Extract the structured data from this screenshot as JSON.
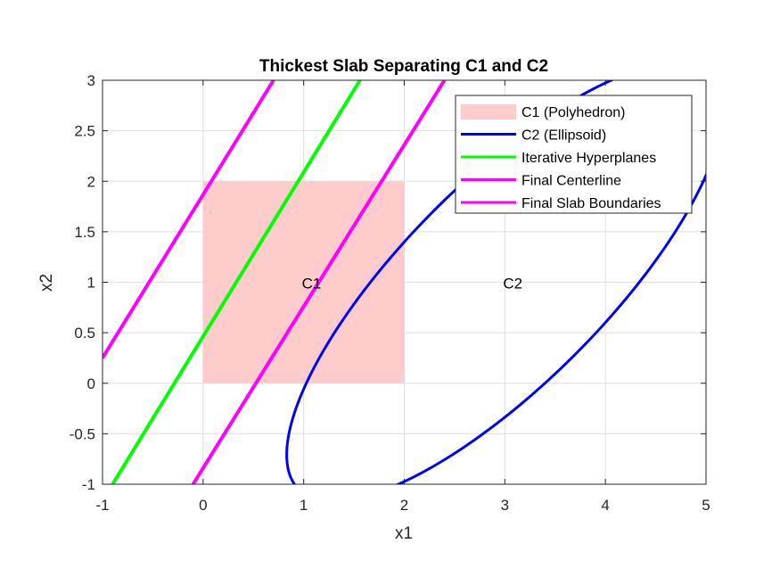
{
  "chart_data": {
    "type": "line",
    "title": "Thickest Slab Separating C1 and C2",
    "xlabel": "x1",
    "ylabel": "x2",
    "xlim": [
      -1,
      5
    ],
    "ylim": [
      -1,
      3
    ],
    "xticks": [
      "-1",
      "0",
      "1",
      "2",
      "3",
      "4",
      "5"
    ],
    "yticks": [
      "-1",
      "-0.5",
      "0",
      "0.5",
      "1",
      "1.5",
      "2",
      "2.5",
      "3"
    ],
    "grid": true,
    "legend_position": "top-right",
    "polyhedron": {
      "name": "C1 (Polyhedron)",
      "color": "#ffcccc",
      "x": [
        0,
        2,
        2,
        0
      ],
      "y": [
        0,
        0,
        2,
        2
      ]
    },
    "ellipsoid": {
      "name": "C2 (Ellipsoid)",
      "color": "#0000ff",
      "center": [
        3,
        1
      ],
      "axis_dir": [
        0.707,
        0.707
      ],
      "major_radius": 2.9,
      "minor_radius": 1.0
    },
    "series": [
      {
        "name": "Iterative Hyperplanes",
        "color": "#00ff00",
        "x": [
          -0.9,
          1.56
        ],
        "y": [
          -1,
          3
        ]
      },
      {
        "name": "Final Centerline",
        "color": "#ff00ff",
        "x": [
          -1,
          0.7
        ],
        "y": [
          0.25,
          3
        ]
      },
      {
        "name": "Final Slab Boundaries",
        "color": "#ff00ff",
        "x": [
          -0.1,
          2.4
        ],
        "y": [
          -1,
          3
        ]
      }
    ],
    "annotations": [
      {
        "text": "C1",
        "x": 1,
        "y": 1
      },
      {
        "text": "C2",
        "x": 3,
        "y": 1
      }
    ]
  }
}
